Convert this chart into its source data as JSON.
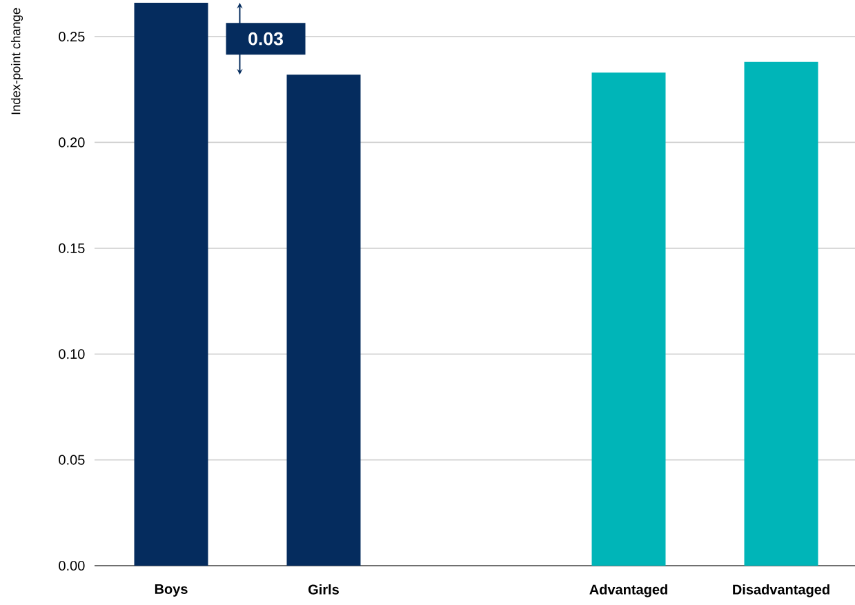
{
  "chart_data": {
    "type": "bar",
    "ylabel": "Index-point change",
    "categories": [
      "Boys",
      "Girls",
      null,
      "Advantaged",
      "Disadvantaged"
    ],
    "values": [
      0.266,
      0.232,
      null,
      0.233,
      0.238
    ],
    "colors": [
      "#052c5e",
      "#052c5e",
      null,
      "#00b5b8",
      "#00b5b8"
    ],
    "ylim": [
      0,
      0.266
    ],
    "yticks": [
      {
        "value": 0,
        "label": "0.00"
      },
      {
        "value": 0.05,
        "label": "0.05"
      },
      {
        "value": 0.1,
        "label": "0.10"
      },
      {
        "value": 0.15,
        "label": "0.15"
      },
      {
        "value": 0.2,
        "label": "0.20"
      },
      {
        "value": 0.25,
        "label": "0.25"
      }
    ],
    "grid": "y",
    "annotations": [
      "0.03"
    ]
  }
}
